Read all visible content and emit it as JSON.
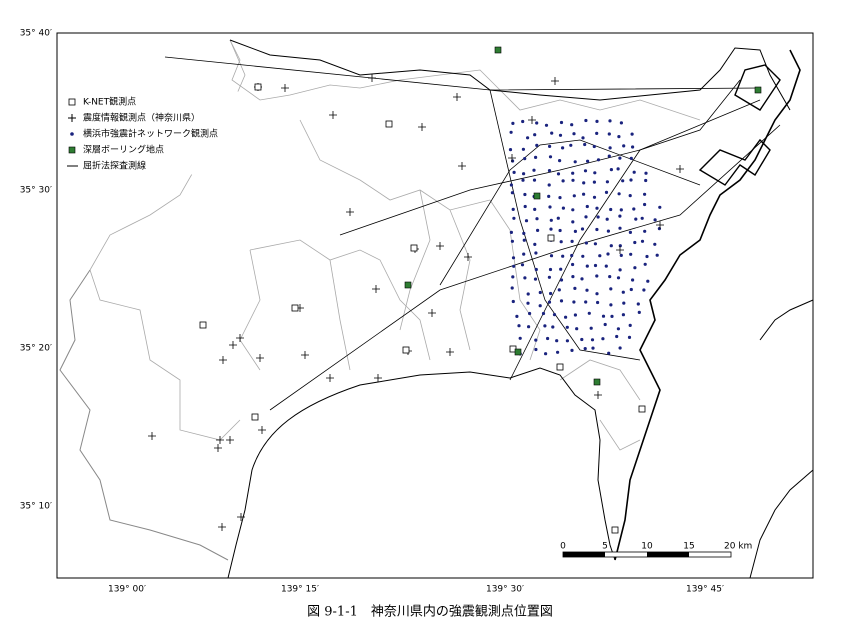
{
  "map": {
    "lat_labels": [
      "35° 40′",
      "35° 30′",
      "35° 20′",
      "35° 10′"
    ],
    "lon_labels": [
      "139° 00′",
      "139° 15′",
      "139° 30′",
      "139° 45′"
    ],
    "legend": [
      "K-NET観測点",
      "震度情報観測点（神奈川県）",
      "横浜市強震計ネットワーク観測点",
      "深層ボーリング地点",
      "屈折法探査測線"
    ],
    "scale_labels": [
      "0",
      "5",
      "10",
      "15",
      "20 km"
    ],
    "caption": "図 9-1-1　神奈川県内の強震観測点位置図"
  }
}
